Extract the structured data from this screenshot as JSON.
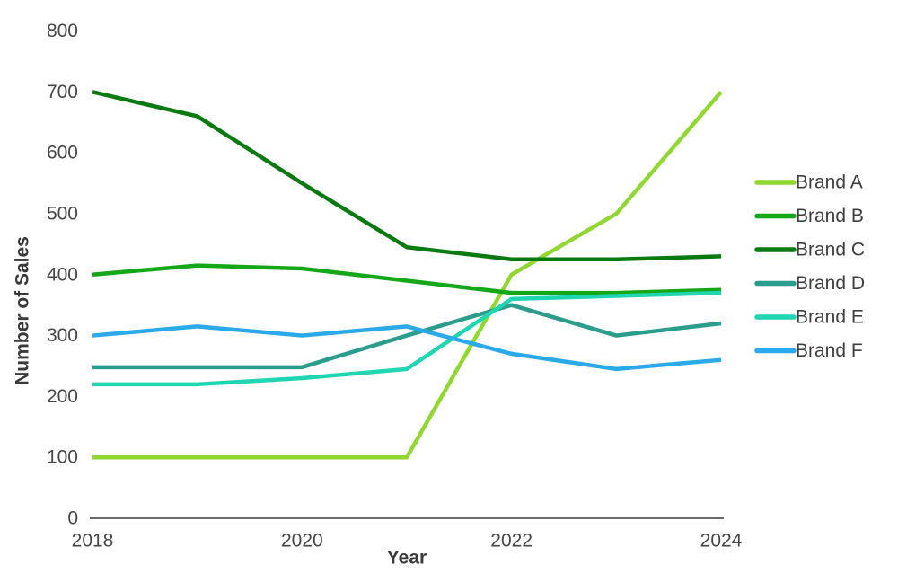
{
  "chart_data": {
    "type": "line",
    "title": "",
    "xlabel": "Year",
    "ylabel": "Number of Sales",
    "x": [
      2018,
      2019,
      2020,
      2021,
      2022,
      2023,
      2024
    ],
    "x_ticks": [
      2018,
      2020,
      2022,
      2024
    ],
    "y_ticks": [
      0,
      100,
      200,
      300,
      400,
      500,
      600,
      700,
      800
    ],
    "xlim": [
      2018,
      2024
    ],
    "ylim": [
      0,
      800
    ],
    "grid": false,
    "legend_position": "right",
    "series": [
      {
        "name": "Brand A",
        "color": "#91D732",
        "values": [
          100,
          100,
          100,
          100,
          400,
          500,
          700
        ]
      },
      {
        "name": "Brand B",
        "color": "#14A819",
        "values": [
          400,
          415,
          410,
          390,
          370,
          370,
          375
        ]
      },
      {
        "name": "Brand C",
        "color": "#087A10",
        "values": [
          700,
          660,
          550,
          445,
          425,
          425,
          430
        ]
      },
      {
        "name": "Brand D",
        "color": "#2A9D8C",
        "values": [
          248,
          248,
          248,
          300,
          350,
          300,
          320
        ]
      },
      {
        "name": "Brand E",
        "color": "#20D6B2",
        "values": [
          220,
          220,
          230,
          245,
          360,
          365,
          370
        ]
      },
      {
        "name": "Brand F",
        "color": "#2BAAEB",
        "values": [
          300,
          315,
          300,
          315,
          270,
          245,
          260
        ]
      }
    ]
  },
  "colors": {
    "axis_line": "#6b6b6b",
    "tick_text": "#474747",
    "axis_title_text": "#3a3a3a",
    "legend_text": "#3f3f3f",
    "background": "#ffffff"
  }
}
